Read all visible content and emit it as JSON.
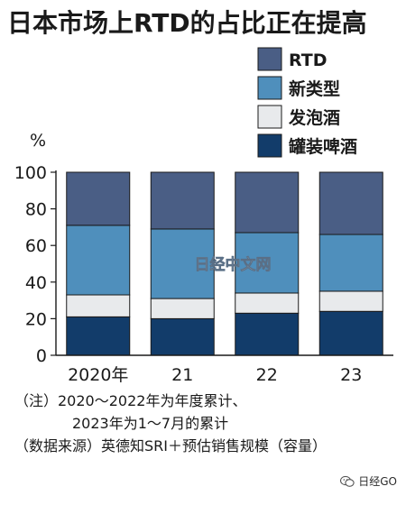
{
  "title": "日本市场上RTD的占比正在提高",
  "colors": {
    "rtd": "#4a5e85",
    "new_type": "#4f8fbc",
    "happoshu": "#e8eaec",
    "canned_beer": "#123c6a"
  },
  "chart_data": {
    "type": "bar",
    "stacked": true,
    "ylabel": "%",
    "ylim": [
      0,
      100
    ],
    "yticks": [
      0,
      20,
      40,
      60,
      80,
      100
    ],
    "categories": [
      "2020年",
      "21",
      "22",
      "23"
    ],
    "series": [
      {
        "name": "罐装啤酒",
        "values": [
          21,
          20,
          23,
          24
        ]
      },
      {
        "name": "发泡酒",
        "values": [
          12,
          11,
          11,
          11
        ]
      },
      {
        "name": "新类型",
        "values": [
          38,
          38,
          33,
          31
        ]
      },
      {
        "name": "RTD",
        "values": [
          29,
          31,
          33,
          34
        ]
      }
    ],
    "legend_order": [
      "RTD",
      "新类型",
      "发泡酒",
      "罐装啤酒"
    ],
    "legend_position": "top-right",
    "watermark_text": "日经中文网"
  },
  "notes": {
    "line1": "（注）2020～2022年为年度累计、",
    "line2": "2023年为1～7月的累计",
    "line3": "（数据来源）英德知SRI＋预估销售规模（容量）"
  },
  "badge": {
    "text": "日经GO",
    "icon": "wechat-icon"
  }
}
